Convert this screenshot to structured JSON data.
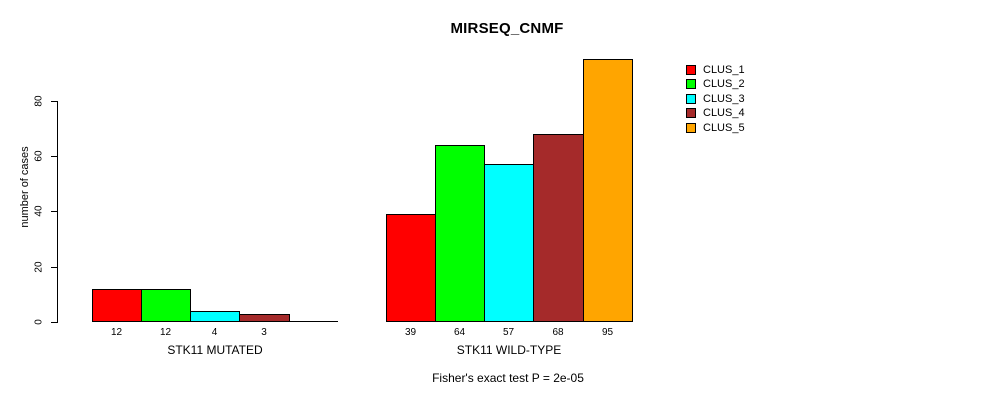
{
  "chart_data": {
    "type": "bar",
    "title": "MIRSEQ_CNMF",
    "ylabel": "number of cases",
    "xlabel": "",
    "yticks": [
      0,
      20,
      40,
      60,
      80
    ],
    "ylim": [
      0,
      95
    ],
    "grid": false,
    "legend_position": "right-outside",
    "series": [
      {
        "name": "CLUS_1",
        "color": "#FF0000",
        "values": [
          12,
          39
        ]
      },
      {
        "name": "CLUS_2",
        "color": "#00FF00",
        "values": [
          12,
          64
        ]
      },
      {
        "name": "CLUS_3",
        "color": "#00FFFF",
        "values": [
          4,
          57
        ]
      },
      {
        "name": "CLUS_4",
        "color": "#A52A2A",
        "values": [
          3,
          68
        ]
      },
      {
        "name": "CLUS_5",
        "color": "#FFA500",
        "values": [
          0,
          95
        ]
      }
    ],
    "groups": [
      {
        "label": "STK11 MUTATED",
        "values": [
          12,
          12,
          4,
          3,
          0
        ],
        "value_labels": [
          "12",
          "12",
          "4",
          "3",
          ""
        ]
      },
      {
        "label": "STK11 WILD-TYPE",
        "values": [
          39,
          64,
          57,
          68,
          95
        ],
        "value_labels": [
          "39",
          "64",
          "57",
          "68",
          "95"
        ]
      }
    ],
    "annotation": "Fisher's exact test P = 2e-05",
    "axis_color": "#000000",
    "bar_border_color": "#000000"
  }
}
